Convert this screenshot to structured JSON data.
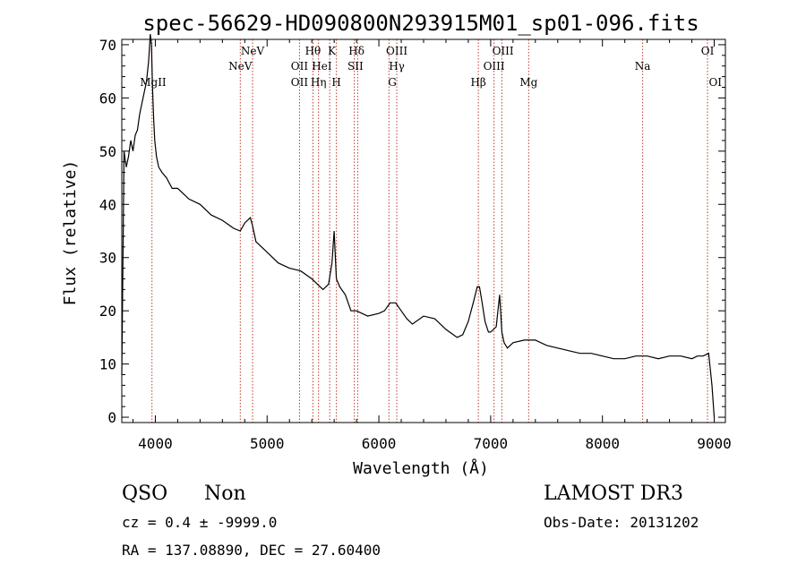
{
  "chart_data": {
    "type": "line",
    "title": "spec-56629-HD090800N293915M01_sp01-096.fits",
    "xlabel": "Wavelength (Å)",
    "ylabel": "Flux (relative)",
    "xlim": [
      3700,
      9100
    ],
    "ylim": [
      -1,
      71
    ],
    "xticks": [
      4000,
      5000,
      6000,
      7000,
      8000,
      9000
    ],
    "yticks": [
      0,
      10,
      20,
      30,
      40,
      50,
      60,
      70
    ],
    "grid": false,
    "series": [
      {
        "name": "spectrum",
        "x": [
          3700,
          3720,
          3740,
          3760,
          3780,
          3800,
          3820,
          3840,
          3860,
          3880,
          3900,
          3920,
          3940,
          3955,
          3965,
          3975,
          3985,
          3995,
          4010,
          4030,
          4060,
          4100,
          4150,
          4200,
          4300,
          4400,
          4500,
          4600,
          4700,
          4760,
          4800,
          4850,
          4870,
          4900,
          5000,
          5100,
          5200,
          5300,
          5400,
          5450,
          5500,
          5550,
          5580,
          5600,
          5620,
          5650,
          5700,
          5750,
          5800,
          5900,
          6000,
          6050,
          6100,
          6150,
          6200,
          6250,
          6300,
          6400,
          6500,
          6600,
          6700,
          6750,
          6800,
          6850,
          6880,
          6900,
          6920,
          6950,
          6980,
          7000,
          7050,
          7080,
          7100,
          7120,
          7150,
          7200,
          7300,
          7400,
          7500,
          7600,
          7700,
          7800,
          7900,
          8000,
          8100,
          8200,
          8300,
          8400,
          8500,
          8600,
          8700,
          8800,
          8850,
          8900,
          8950,
          8980,
          9000
        ],
        "y": [
          8,
          50,
          47,
          49,
          52,
          50,
          53,
          54,
          57,
          59,
          61,
          63,
          67,
          72,
          70,
          62,
          56,
          52,
          49,
          47,
          46,
          45,
          43,
          43,
          41,
          40,
          38,
          37,
          35.5,
          35,
          36.5,
          37.5,
          36,
          33,
          31,
          29,
          28,
          27.5,
          26,
          25,
          24,
          25,
          29,
          35,
          26,
          24.5,
          23,
          20,
          20,
          19,
          19.5,
          20,
          21.5,
          21.5,
          20,
          18.5,
          17.5,
          19,
          18.5,
          16.5,
          15,
          15.5,
          18,
          22,
          24.5,
          24.5,
          22,
          18,
          16,
          16,
          17,
          23,
          16,
          14,
          13,
          14,
          14.5,
          14.5,
          13.5,
          13,
          12.5,
          12,
          12,
          11.5,
          11,
          11,
          11.5,
          11.5,
          11,
          11.5,
          11.5,
          11,
          11.5,
          11.5,
          12,
          6,
          0
        ]
      }
    ],
    "annotations": [
      {
        "label": "MgII",
        "x": 3980,
        "row": 3
      },
      {
        "label": "NeV",
        "x": 4760,
        "row": 2
      },
      {
        "label": "NeV",
        "x": 4870,
        "row": 1
      },
      {
        "label": "OII",
        "x": 5290,
        "row": 2
      },
      {
        "label": "OII",
        "x": 5290,
        "row": 3
      },
      {
        "label": "Hθ",
        "x": 5410,
        "row": 1
      },
      {
        "label": "Hη",
        "x": 5460,
        "row": 3
      },
      {
        "label": "HeI",
        "x": 5490,
        "row": 2
      },
      {
        "label": "K",
        "x": 5580,
        "row": 1
      },
      {
        "label": "H",
        "x": 5620,
        "row": 3
      },
      {
        "label": "Hδ",
        "x": 5800,
        "row": 1
      },
      {
        "label": "SII",
        "x": 5790,
        "row": 2
      },
      {
        "label": "OIII",
        "x": 6160,
        "row": 1
      },
      {
        "label": "Hγ",
        "x": 6160,
        "row": 2
      },
      {
        "label": "G",
        "x": 6120,
        "row": 3
      },
      {
        "label": "Hβ",
        "x": 6890,
        "row": 3
      },
      {
        "label": "OIII",
        "x": 7110,
        "row": 1
      },
      {
        "label": "OIII",
        "x": 7030,
        "row": 2
      },
      {
        "label": "Mg",
        "x": 7340,
        "row": 3
      },
      {
        "label": "Na",
        "x": 8360,
        "row": 2
      },
      {
        "label": "OI",
        "x": 8940,
        "row": 1
      },
      {
        "label": "OI",
        "x": 9010,
        "row": 3
      }
    ],
    "line_markers": [
      3970,
      4760,
      4870,
      5290,
      5410,
      5460,
      5560,
      5620,
      5780,
      5810,
      6090,
      6160,
      6890,
      7030,
      7100,
      7340,
      8360,
      8940
    ]
  },
  "info": {
    "class": "QSO",
    "subclass": "Non",
    "survey": "LAMOST DR3",
    "cz": "cz = 0.4 ± -9999.0",
    "obs_date": "Obs-Date: 20131202",
    "radec": "RA = 137.08890, DEC =  27.60400"
  },
  "colors": {
    "line": "#000000",
    "marker": "#c0392b",
    "axes": "#000000"
  }
}
